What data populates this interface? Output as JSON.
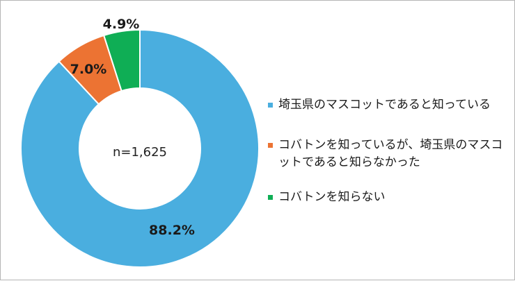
{
  "chart_data": {
    "type": "pie",
    "variant": "donut",
    "center_label": "n=1,625",
    "series": [
      {
        "label": "埼玉県のマスコットであると知っている",
        "value": 88.2,
        "display": "88.2%",
        "color": "#4aaedf"
      },
      {
        "label": "コバトンを知っているが、埼玉県のマスコットであると知らなかった",
        "value": 7.0,
        "display": "7.0%",
        "color": "#ec7333"
      },
      {
        "label": "コバトンを知らない",
        "value": 4.9,
        "display": "4.9%",
        "color": "#0fae55"
      }
    ],
    "legend_placement": "right"
  }
}
